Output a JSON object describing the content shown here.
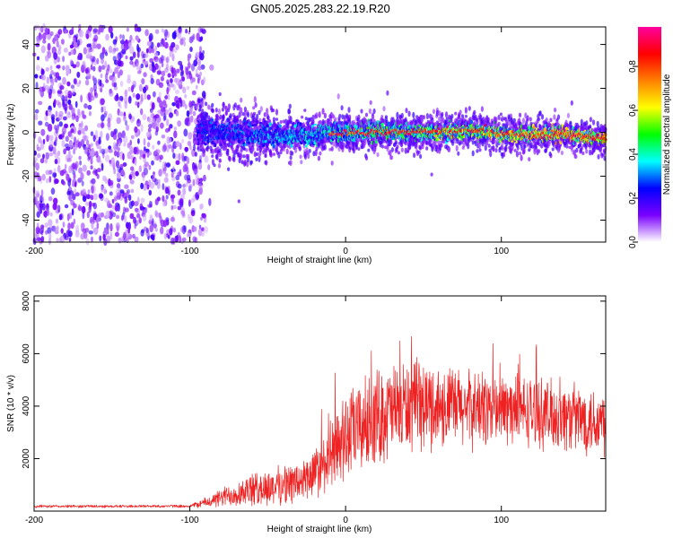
{
  "title": "GN05.2025.283.22.19.R20",
  "chart_data": [
    {
      "type": "heatmap",
      "name": "spectrogram",
      "xlabel": "Height of straight line (km)",
      "ylabel": "Frequency (Hz)",
      "xlim": [
        -200,
        167
      ],
      "ylim": [
        -50,
        48
      ],
      "xticks": [
        -200,
        -100,
        0,
        100
      ],
      "yticks": [
        -40,
        -20,
        0,
        20,
        40
      ],
      "noise_region_x": [
        -200,
        -90
      ],
      "signal_band_center_hz": {
        "x": [
          -95,
          -80,
          -60,
          -40,
          -20,
          0,
          20,
          40,
          60,
          80,
          100,
          120,
          140,
          167
        ],
        "y": [
          0,
          0,
          -1,
          -2,
          -1,
          0,
          0,
          0,
          0,
          1,
          -1,
          -1,
          -1,
          -3
        ]
      },
      "colorbar": {
        "label": "Normalized spectral amplitude",
        "range": [
          0,
          0.98
        ],
        "ticks": [
          0.0,
          0.2,
          0.4,
          0.6,
          0.8
        ],
        "tick_labels": [
          "0.0",
          "0.2",
          "0.4",
          "0.6",
          "0.8"
        ],
        "colors": [
          "#ffffff",
          "#7a00ff",
          "#0000ff",
          "#00ffff",
          "#00ff00",
          "#ffff00",
          "#ff8000",
          "#ff0000",
          "#ff00a0"
        ]
      }
    },
    {
      "type": "line",
      "name": "snr",
      "xlabel": "Height of straight line (km)",
      "ylabel": "SNR (10 * v/v)",
      "xlim": [
        -200,
        167
      ],
      "ylim": [
        0,
        8200
      ],
      "xticks": [
        -200,
        -100,
        0,
        100
      ],
      "yticks": [
        2000,
        4000,
        6000,
        8000
      ],
      "series_color": "#ee2222",
      "envelope": {
        "x": [
          -200,
          -100,
          -85,
          -70,
          -50,
          -30,
          -20,
          -10,
          0,
          20,
          40,
          60,
          80,
          100,
          120,
          140,
          167
        ],
        "mean": [
          180,
          190,
          400,
          700,
          900,
          1100,
          1400,
          2000,
          2800,
          3600,
          4000,
          4000,
          3900,
          3900,
          3800,
          3600,
          3400
        ],
        "spread": [
          60,
          60,
          300,
          600,
          800,
          900,
          1100,
          1500,
          1900,
          2100,
          2000,
          1800,
          1700,
          1600,
          1500,
          1500,
          1500
        ]
      }
    }
  ]
}
